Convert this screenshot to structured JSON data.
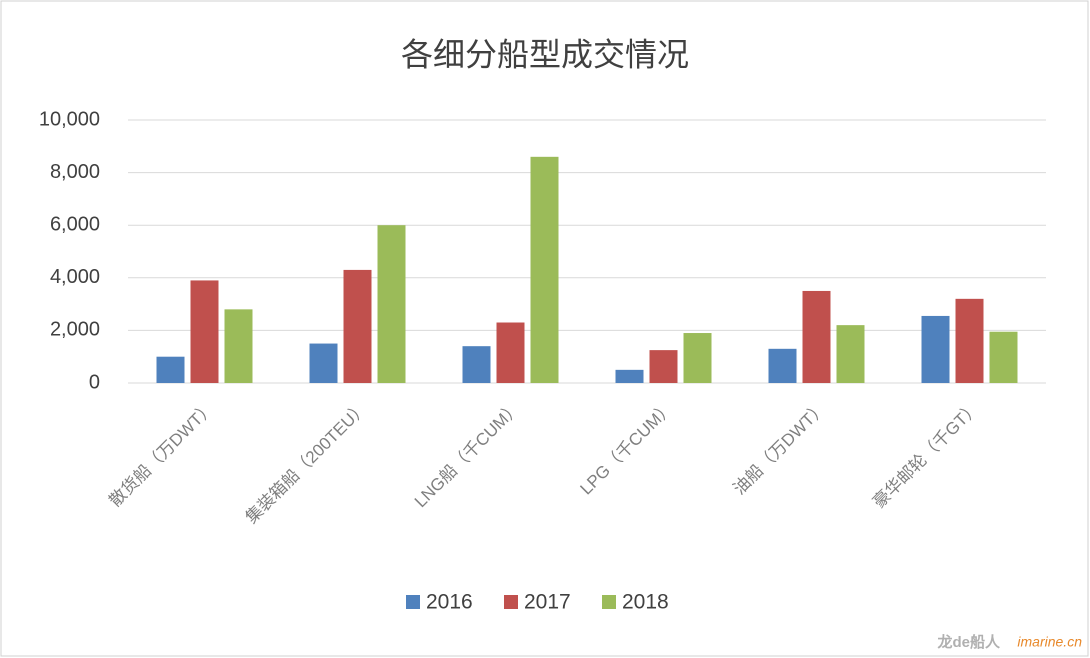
{
  "chart_data": {
    "type": "bar",
    "title": "各细分船型成交情况",
    "categories": [
      "散货船（万DWT）",
      "集装箱船（200TEU）",
      "LNG船（千CUM）",
      "LPG（千CUM）",
      "油船（万DWT）",
      "豪华邮轮（千GT）"
    ],
    "series": [
      {
        "name": "2016",
        "color": "#4f81bd",
        "values": [
          1000,
          1500,
          1400,
          500,
          1300,
          2550
        ]
      },
      {
        "name": "2017",
        "color": "#c0504d",
        "values": [
          3900,
          4300,
          2300,
          1250,
          3500,
          3200
        ]
      },
      {
        "name": "2018",
        "color": "#9bbb59",
        "values": [
          2800,
          6000,
          8600,
          1900,
          2200,
          1950
        ]
      }
    ],
    "ylim": [
      0,
      10000
    ],
    "yticks": [
      0,
      {
        "value": 2000,
        "label": "2,000"
      },
      {
        "value": 4000,
        "label": "4,000"
      },
      {
        "value": 6000,
        "label": "6,000"
      },
      {
        "value": 8000,
        "label": "8,000"
      },
      {
        "value": 10000,
        "label": "10,000"
      }
    ],
    "grid": true,
    "legend": "bottom"
  },
  "watermark": {
    "brand": "龙de船人",
    "site": "imarine.cn"
  }
}
